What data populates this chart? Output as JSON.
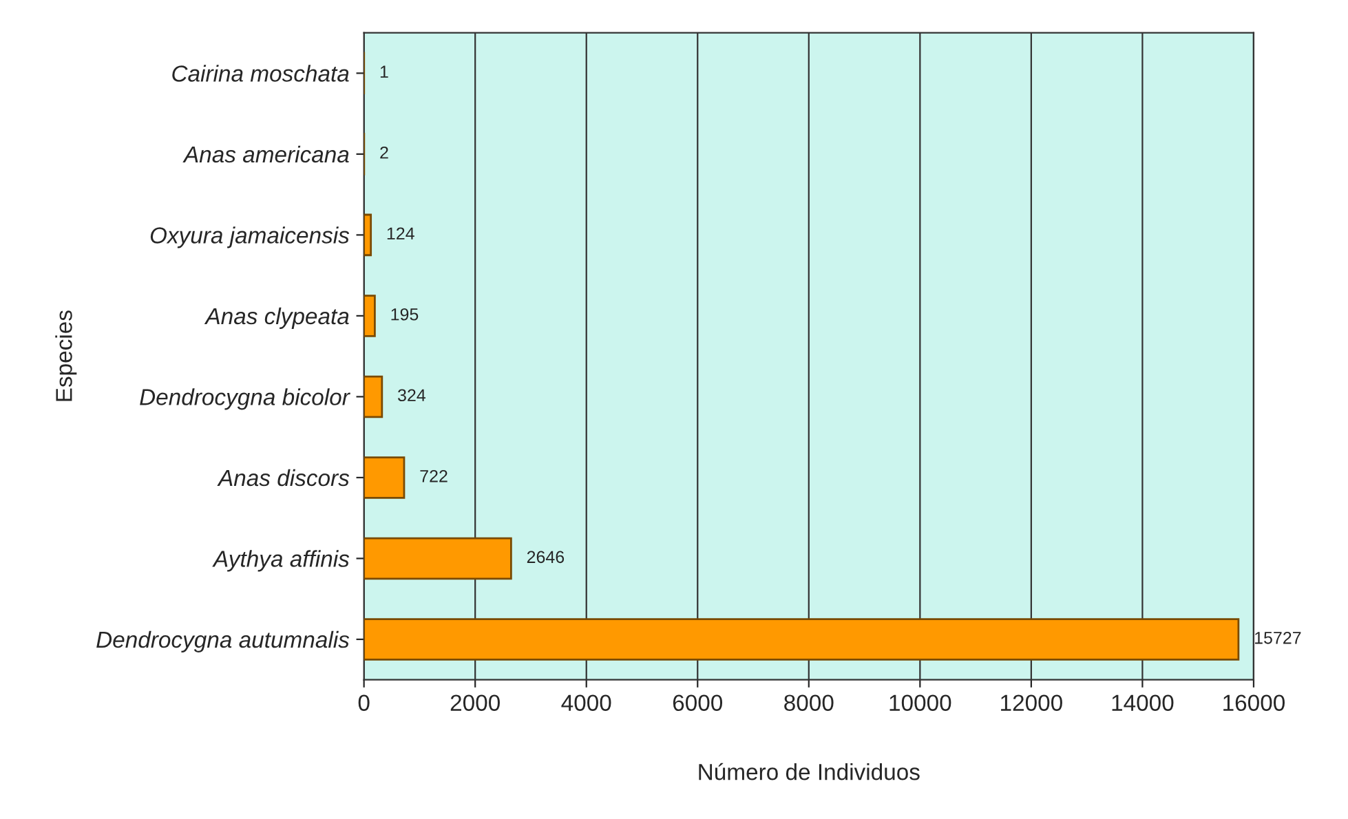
{
  "chart_data": {
    "type": "bar",
    "orientation": "horizontal",
    "xlabel": "Número de Individuos",
    "ylabel": "Especies",
    "categories": [
      "Cairina moschata",
      "Anas americana",
      "Oxyura jamaicensis",
      "Anas clypeata",
      "Dendrocygna bicolor",
      "Anas discors",
      "Aythya affinis",
      "Dendrocygna autumnalis"
    ],
    "values": [
      1,
      2,
      124,
      195,
      324,
      722,
      2646,
      15727
    ],
    "color": "#ff9900",
    "xlim": [
      0,
      16000
    ],
    "xticks": [
      0,
      2000,
      4000,
      6000,
      8000,
      10000,
      12000,
      14000,
      16000
    ],
    "grid": "x",
    "data_labels": true
  }
}
